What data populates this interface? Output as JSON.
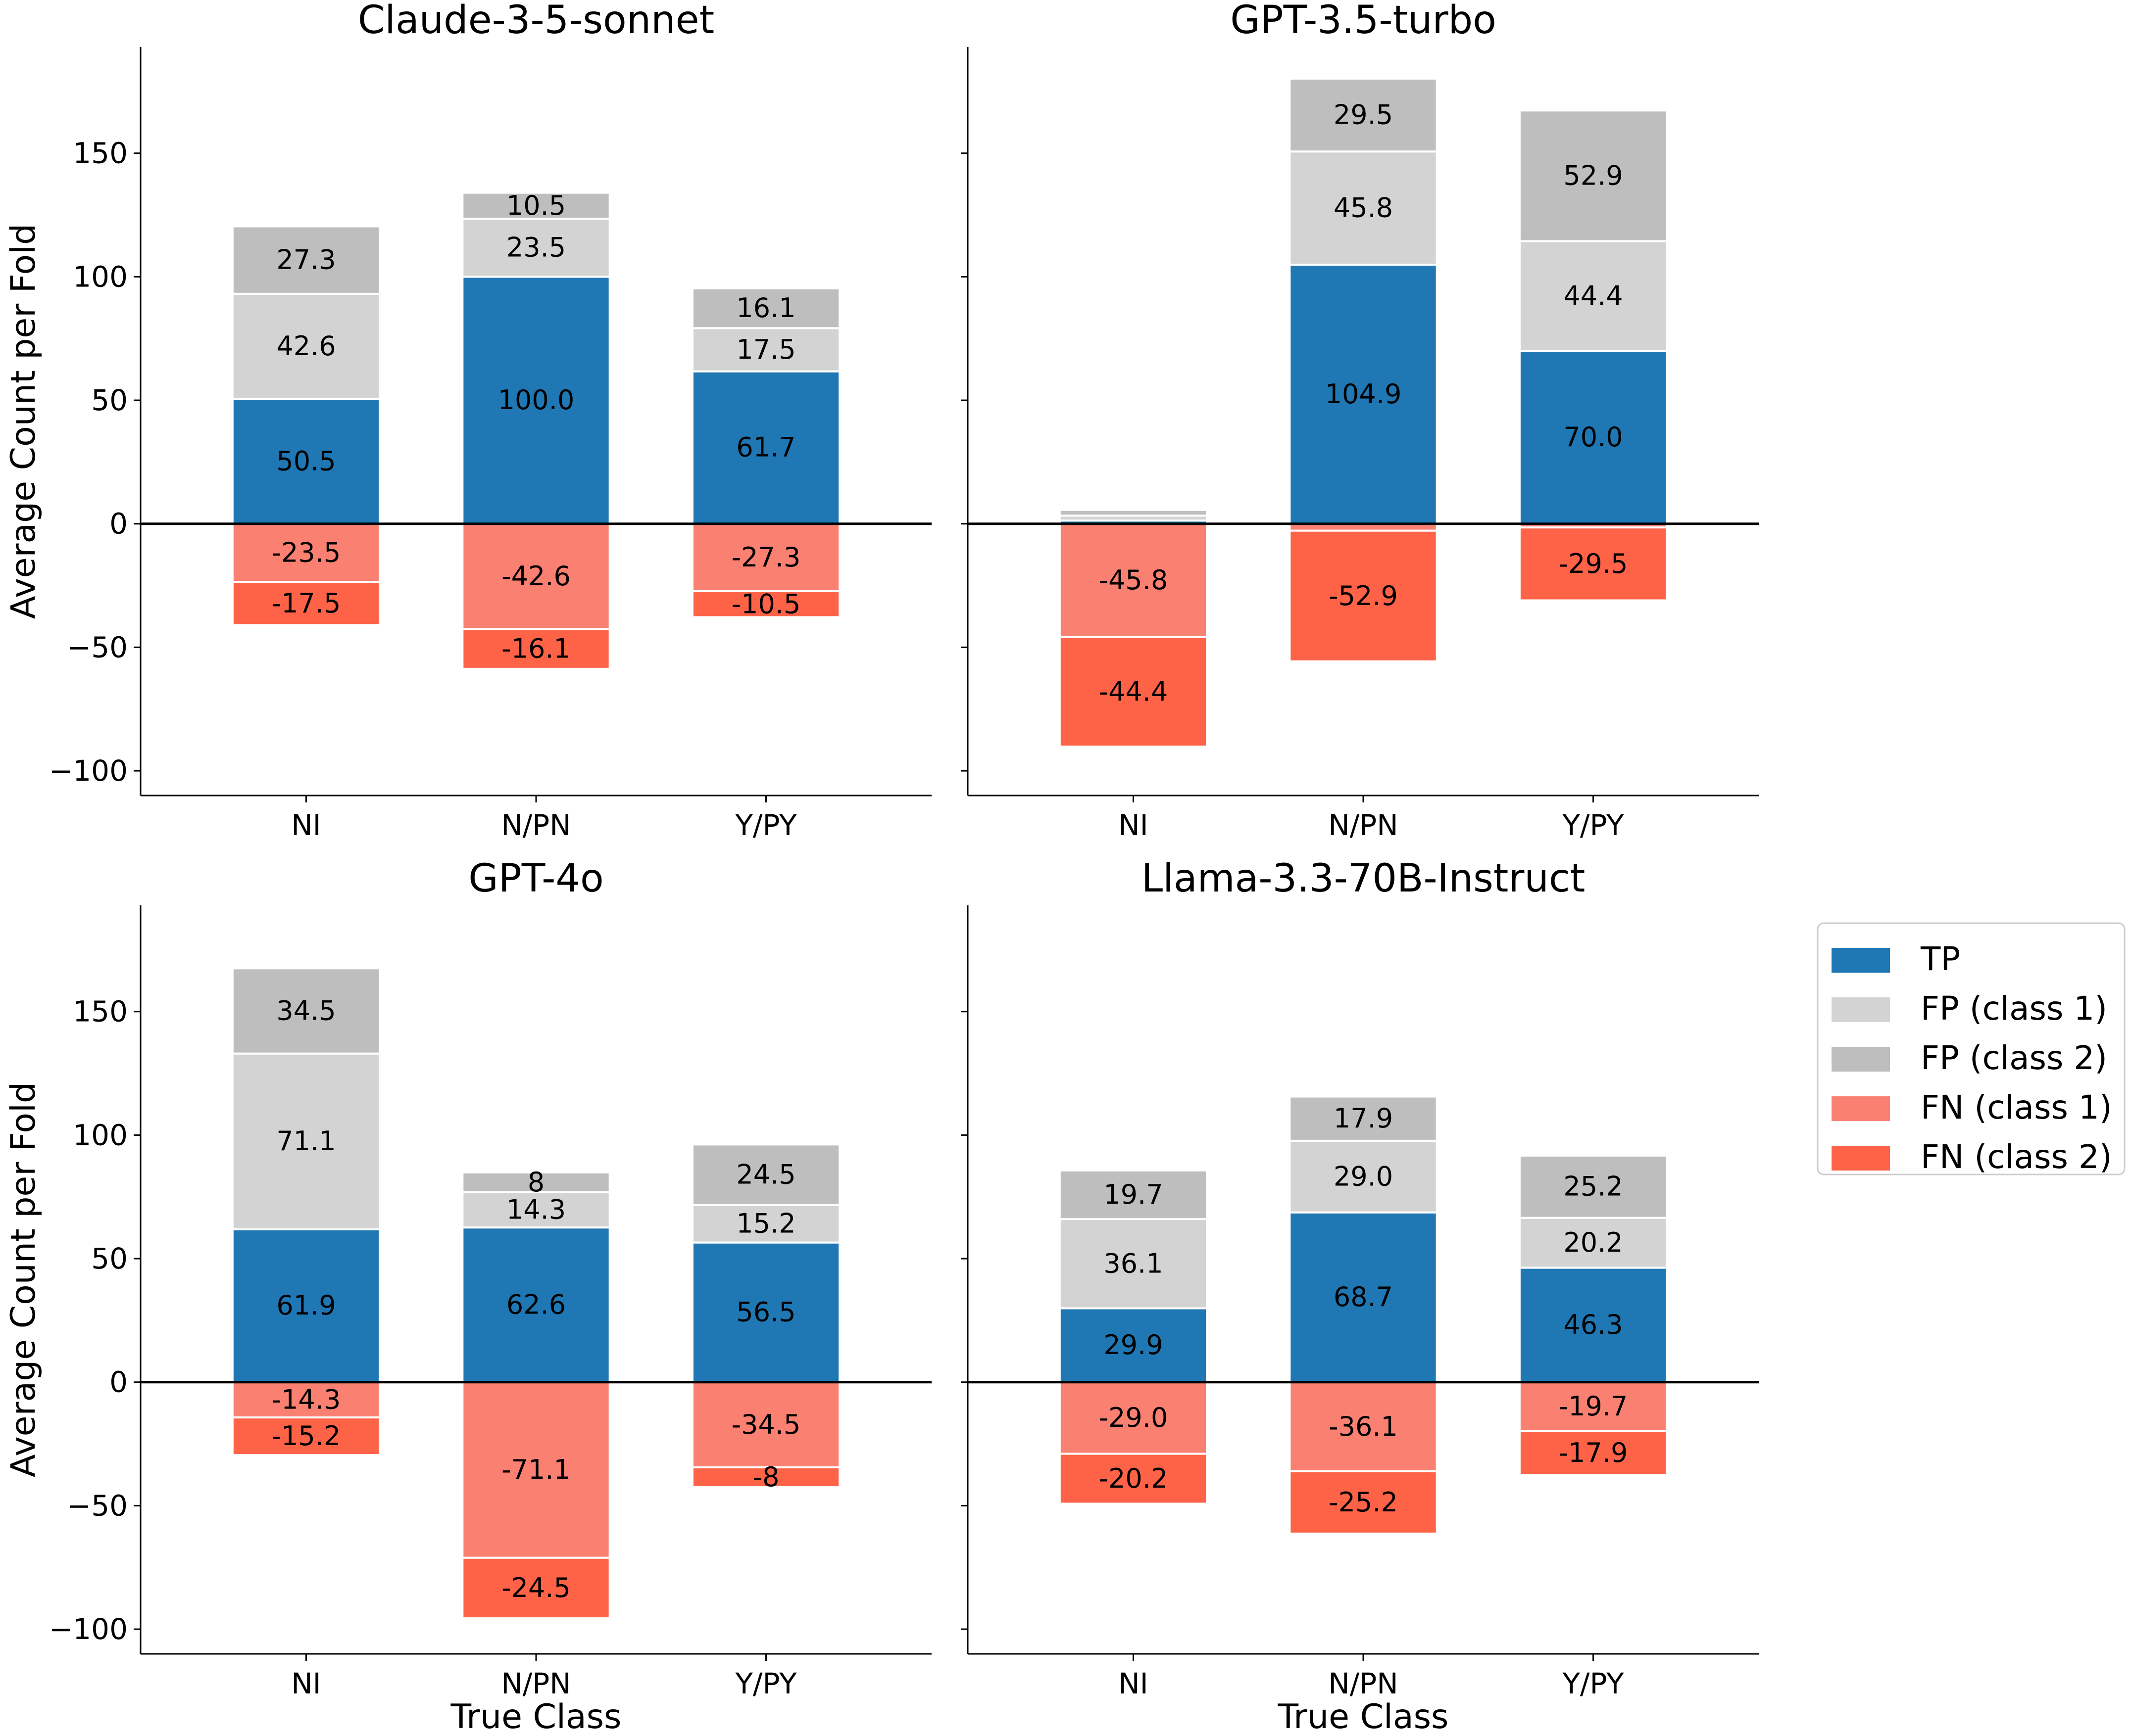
{
  "legend": {
    "placement": "right",
    "items": [
      {
        "key": "TP",
        "label": "TP",
        "color": "#1f77b4"
      },
      {
        "key": "FP1",
        "label": "FP (class 1)",
        "color": "#d3d3d3"
      },
      {
        "key": "FP2",
        "label": "FP (class 2)",
        "color": "#bebebe"
      },
      {
        "key": "FN1",
        "label": "FN (class 1)",
        "color": "#fa8072"
      },
      {
        "key": "FN2",
        "label": "FN (class 2)",
        "color": "#ff6347"
      }
    ]
  },
  "chart_data": [
    {
      "type": "bar",
      "title": "Claude-3-5-sonnet",
      "categories": [
        "NI",
        "N/PN",
        "Y/PY"
      ],
      "xlabel": "",
      "ylabel": "Average Count per Fold",
      "ylim": [
        -110,
        193
      ],
      "yticks": [
        -100,
        -50,
        0,
        50,
        100,
        150
      ],
      "ytick_labels": [
        "−100",
        "−50",
        "0",
        "50",
        "100",
        "150"
      ],
      "series": [
        {
          "name": "TP",
          "values": [
            50.5,
            100.0,
            61.7
          ],
          "labels": [
            "50.5",
            "100.0",
            "61.7"
          ]
        },
        {
          "name": "FP (class 1)",
          "values": [
            42.6,
            23.5,
            17.5
          ],
          "labels": [
            "42.6",
            "23.5",
            "17.5"
          ]
        },
        {
          "name": "FP (class 2)",
          "values": [
            27.3,
            10.5,
            16.1
          ],
          "labels": [
            "27.3",
            "10.5",
            "16.1"
          ]
        },
        {
          "name": "FN (class 1)",
          "values": [
            -23.5,
            -42.6,
            -27.3
          ],
          "labels": [
            "-23.5",
            "-42.6",
            "-27.3"
          ]
        },
        {
          "name": "FN (class 2)",
          "values": [
            -17.5,
            -16.1,
            -10.5
          ],
          "labels": [
            "-17.5",
            "-16.1",
            "-10.5"
          ]
        }
      ]
    },
    {
      "type": "bar",
      "title": "GPT-3.5-turbo",
      "categories": [
        "NI",
        "N/PN",
        "Y/PY"
      ],
      "xlabel": "",
      "ylabel": "",
      "ylim": [
        -110,
        193
      ],
      "yticks": [
        -100,
        -50,
        0,
        50,
        100,
        150
      ],
      "ytick_labels": [],
      "series": [
        {
          "name": "TP",
          "values": [
            1.3,
            104.9,
            70.0
          ],
          "labels": [
            "",
            "104.9",
            "70.0"
          ]
        },
        {
          "name": "FP (class 1)",
          "values": [
            2.0,
            45.8,
            44.4
          ],
          "labels": [
            "",
            "45.8",
            "44.4"
          ]
        },
        {
          "name": "FP (class 2)",
          "values": [
            2.3,
            29.5,
            52.9
          ],
          "labels": [
            "",
            "29.5",
            "52.9"
          ]
        },
        {
          "name": "FN (class 1)",
          "values": [
            -45.8,
            -2.8,
            -1.5
          ],
          "labels": [
            "-45.8",
            "",
            ""
          ]
        },
        {
          "name": "FN (class 2)",
          "values": [
            -44.4,
            -52.9,
            -29.5
          ],
          "labels": [
            "-44.4",
            "-52.9",
            "-29.5"
          ]
        }
      ]
    },
    {
      "type": "bar",
      "title": "GPT-4o",
      "categories": [
        "NI",
        "N/PN",
        "Y/PY"
      ],
      "xlabel": "True Class",
      "ylabel": "Average Count per Fold",
      "ylim": [
        -110,
        193
      ],
      "yticks": [
        -100,
        -50,
        0,
        50,
        100,
        150
      ],
      "ytick_labels": [
        "−100",
        "−50",
        "0",
        "50",
        "100",
        "150"
      ],
      "series": [
        {
          "name": "TP",
          "values": [
            61.9,
            62.6,
            56.5
          ],
          "labels": [
            "61.9",
            "62.6",
            "56.5"
          ]
        },
        {
          "name": "FP (class 1)",
          "values": [
            71.1,
            14.3,
            15.2
          ],
          "labels": [
            "71.1",
            "14.3",
            "15.2"
          ]
        },
        {
          "name": "FP (class 2)",
          "values": [
            34.5,
            8,
            24.5
          ],
          "labels": [
            "34.5",
            "8",
            "24.5"
          ]
        },
        {
          "name": "FN (class 1)",
          "values": [
            -14.3,
            -71.1,
            -34.5
          ],
          "labels": [
            "-14.3",
            "-71.1",
            "-34.5"
          ]
        },
        {
          "name": "FN (class 2)",
          "values": [
            -15.2,
            -24.5,
            -8
          ],
          "labels": [
            "-15.2",
            "-24.5",
            "-8"
          ]
        }
      ]
    },
    {
      "type": "bar",
      "title": "Llama-3.3-70B-Instruct",
      "categories": [
        "NI",
        "N/PN",
        "Y/PY"
      ],
      "xlabel": "True Class",
      "ylabel": "",
      "ylim": [
        -110,
        193
      ],
      "yticks": [
        -100,
        -50,
        0,
        50,
        100,
        150
      ],
      "ytick_labels": [],
      "series": [
        {
          "name": "TP",
          "values": [
            29.9,
            68.7,
            46.3
          ],
          "labels": [
            "29.9",
            "68.7",
            "46.3"
          ]
        },
        {
          "name": "FP (class 1)",
          "values": [
            36.1,
            29.0,
            20.2
          ],
          "labels": [
            "36.1",
            "29.0",
            "20.2"
          ]
        },
        {
          "name": "FP (class 2)",
          "values": [
            19.7,
            17.9,
            25.2
          ],
          "labels": [
            "19.7",
            "17.9",
            "25.2"
          ]
        },
        {
          "name": "FN (class 1)",
          "values": [
            -29.0,
            -36.1,
            -19.7
          ],
          "labels": [
            "-29.0",
            "-36.1",
            "-19.7"
          ]
        },
        {
          "name": "FN (class 2)",
          "values": [
            -20.2,
            -25.2,
            -17.9
          ],
          "labels": [
            "-20.2",
            "-25.2",
            "-17.9"
          ]
        }
      ]
    }
  ]
}
